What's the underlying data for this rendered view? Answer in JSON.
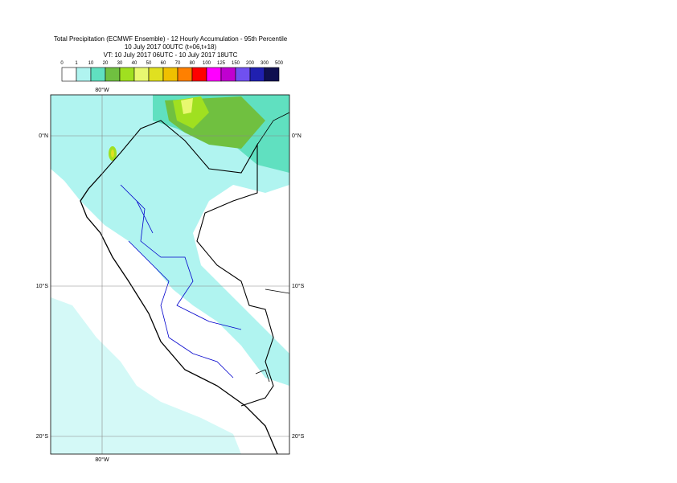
{
  "header": {
    "title": "Total Precipitation (ECMWF Ensemble) - 12 Hourly Accumulation - 95th Percentile",
    "subtitle": "10 July 2017 00UTC (t+06,t+18)",
    "valid_time": "VT: 10 July 2017 06UTC - 10 July 2017 18UTC"
  },
  "legend": {
    "ticks": [
      0,
      1,
      10,
      20,
      30,
      40,
      50,
      60,
      70,
      80,
      100,
      125,
      150,
      200,
      300,
      500
    ],
    "colors": [
      "#ffffff",
      "#b0f4f0",
      "#60e0c0",
      "#70c040",
      "#a0e020",
      "#e8f870",
      "#e0e020",
      "#f0c000",
      "#ff8000",
      "#ff0000",
      "#ff00ff",
      "#c000d0",
      "#7050f0",
      "#2020b0",
      "#101050"
    ]
  },
  "map": {
    "lon_top": "80°W",
    "lon_bottom": "80°W",
    "lat_left": [
      "0°N",
      "10°S",
      "20°S"
    ],
    "lat_right": [
      "0°N",
      "10°S",
      "20°S"
    ]
  }
}
